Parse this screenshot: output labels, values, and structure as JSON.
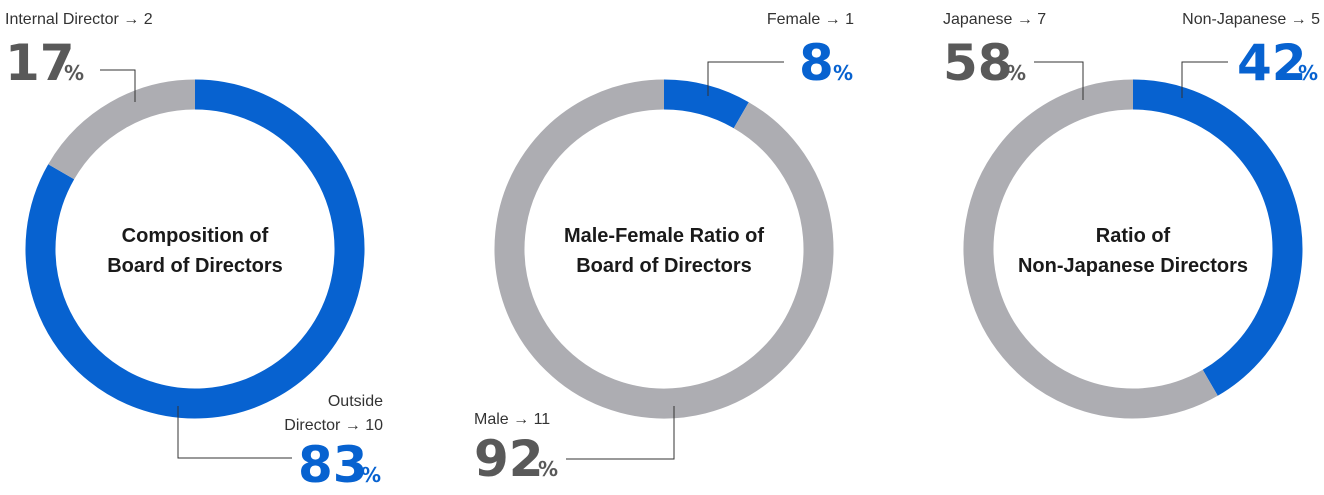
{
  "colors": {
    "blue": "#0762d0",
    "gray": "#adadb2",
    "dark": "#595959",
    "line": "#333333"
  },
  "chart_data": [
    {
      "type": "pie",
      "title_lines": [
        "Composition of",
        "Board of Directors"
      ],
      "segments": [
        {
          "label_lines": [
            "Outside",
            "Director → 10"
          ],
          "count": 10,
          "percent": "83",
          "color": "blue"
        },
        {
          "label_lines": [
            "Internal Director → 2"
          ],
          "count": 2,
          "percent": "17",
          "color": "gray"
        }
      ],
      "percent_sign": "%"
    },
    {
      "type": "pie",
      "title_lines": [
        "Male-Female Ratio of",
        "Board of Directors"
      ],
      "segments": [
        {
          "label_lines": [
            "Female → 1"
          ],
          "count": 1,
          "percent": "8",
          "color": "blue"
        },
        {
          "label_lines": [
            "Male → 11"
          ],
          "count": 11,
          "percent": "92",
          "color": "gray"
        }
      ],
      "percent_sign": "%"
    },
    {
      "type": "pie",
      "title_lines": [
        "Ratio of",
        "Non-Japanese Directors"
      ],
      "segments": [
        {
          "label_lines": [
            "Non-Japanese → 5"
          ],
          "count": 5,
          "percent": "42",
          "color": "blue"
        },
        {
          "label_lines": [
            "Japanese → 7"
          ],
          "count": 7,
          "percent": "58",
          "color": "gray"
        }
      ],
      "percent_sign": "%"
    }
  ]
}
